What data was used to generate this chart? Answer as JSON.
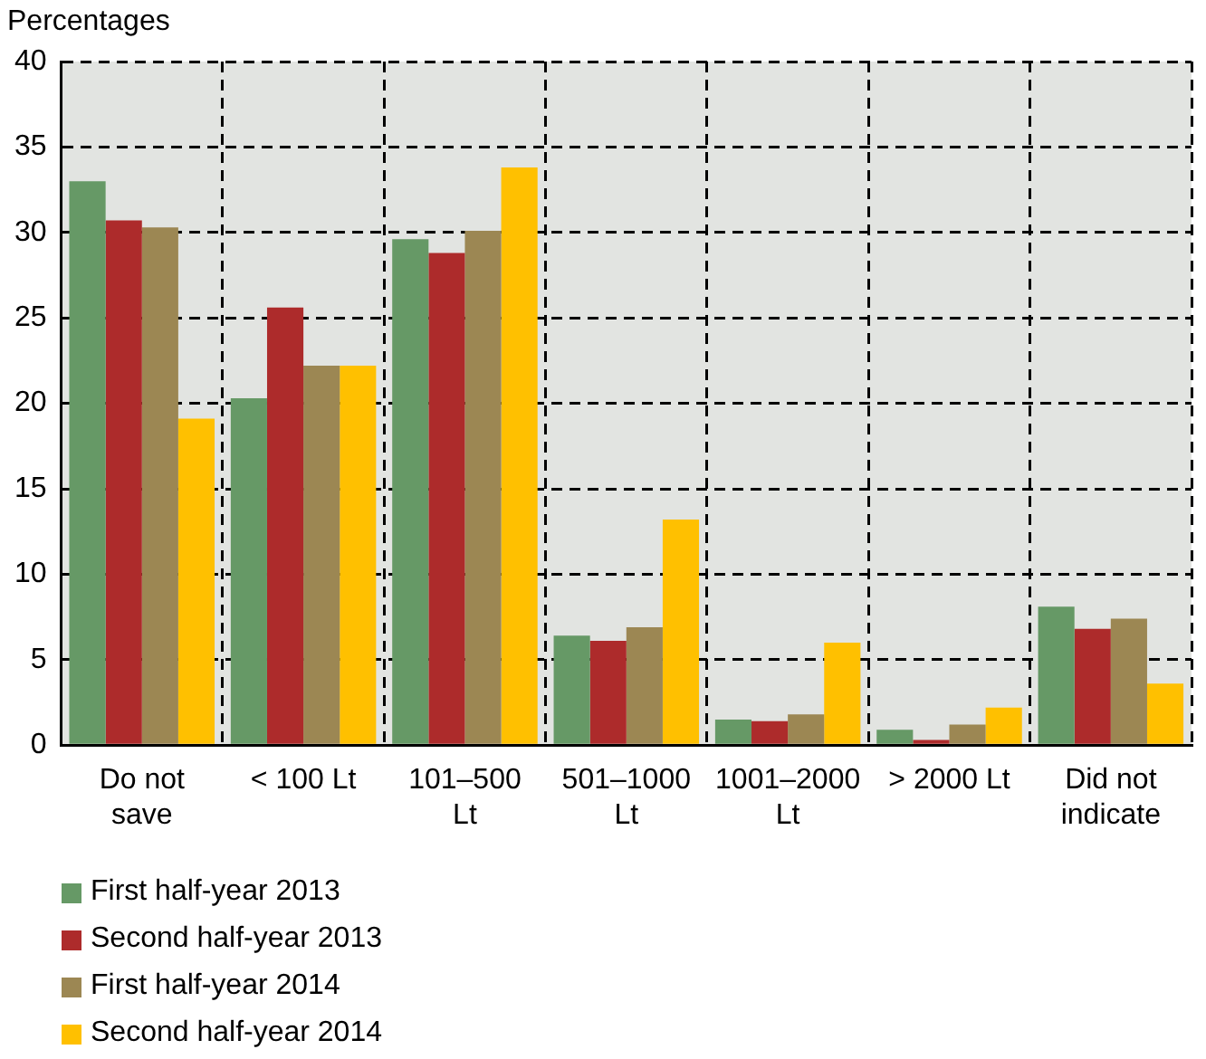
{
  "chart_data": {
    "type": "bar",
    "ylabel": "Percentages",
    "categories": [
      "Do not save",
      "< 100 Lt",
      "101–500 Lt",
      "501–1000 Lt",
      "1001–2000 Lt",
      "> 2000 Lt",
      "Did not indicate"
    ],
    "series": [
      {
        "name": "First half-year 2013",
        "color": "#669966",
        "values": [
          33.0,
          20.3,
          29.6,
          6.4,
          1.5,
          0.9,
          8.1
        ]
      },
      {
        "name": "Second half-year 2013",
        "color": "#ad2b2b",
        "values": [
          30.7,
          25.6,
          28.8,
          6.1,
          1.4,
          0.3,
          6.8
        ]
      },
      {
        "name": "First half-year 2014",
        "color": "#9c8753",
        "values": [
          30.3,
          22.2,
          30.1,
          6.9,
          1.8,
          1.2,
          7.4
        ]
      },
      {
        "name": "Second half-year 2014",
        "color": "#ffc000",
        "values": [
          19.1,
          22.2,
          33.8,
          13.2,
          6.0,
          2.2,
          3.6
        ]
      }
    ],
    "ylim": [
      0,
      40
    ],
    "yticks": [
      0,
      5,
      10,
      15,
      20,
      25,
      30,
      35,
      40
    ],
    "grid": true,
    "legend": "bottom left"
  }
}
